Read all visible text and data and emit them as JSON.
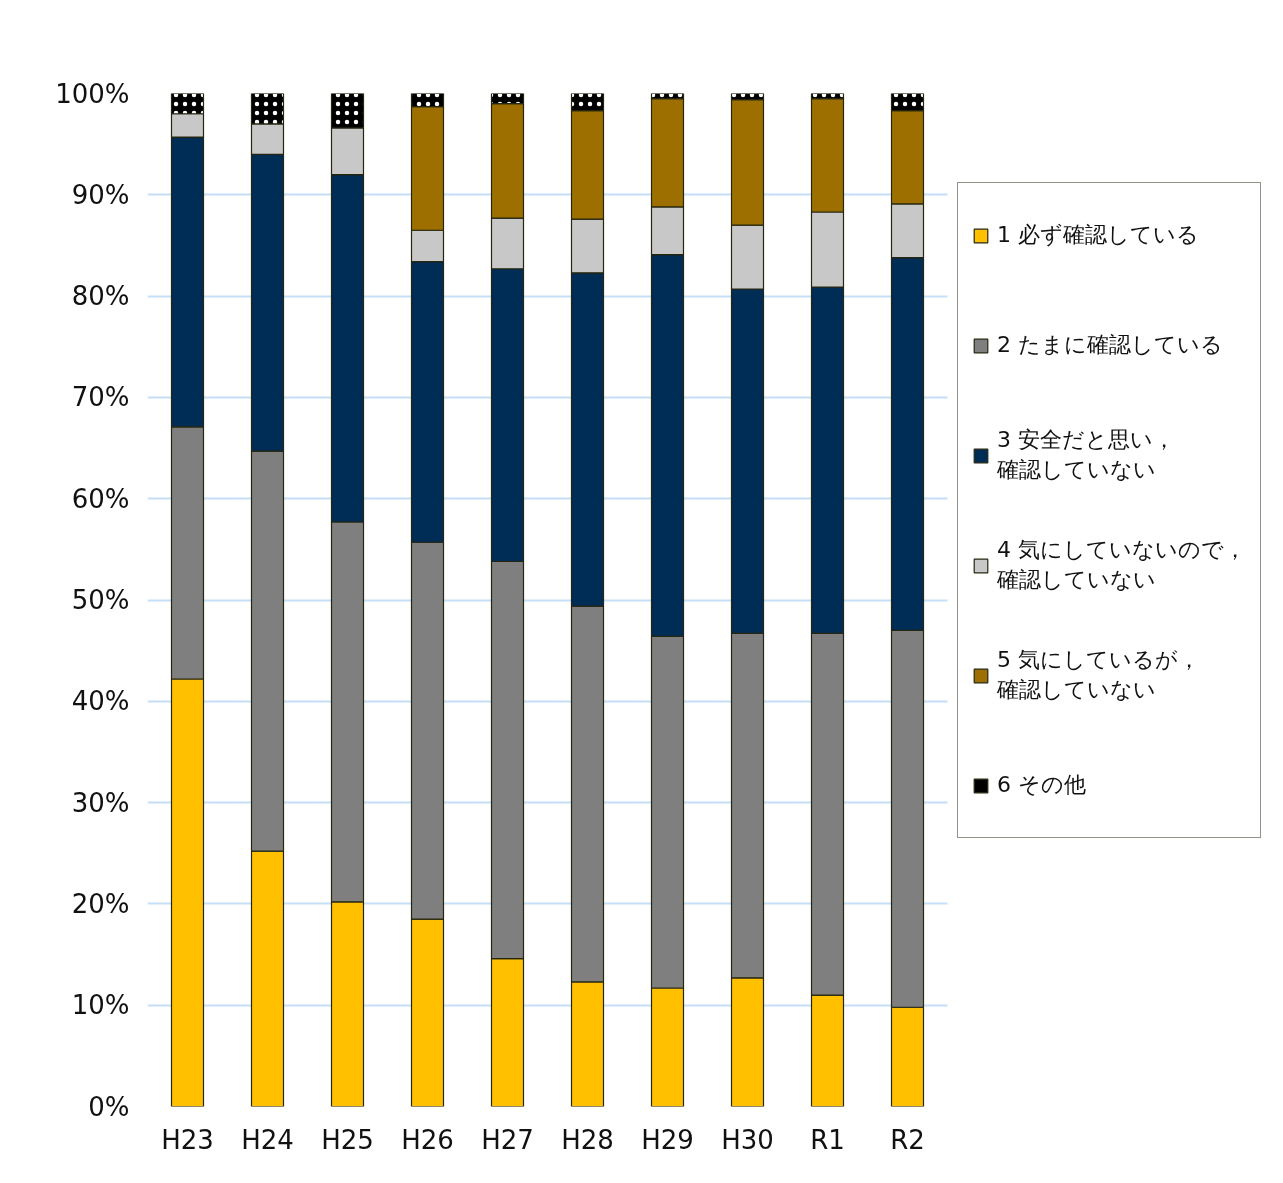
{
  "chart_data": {
    "type": "bar",
    "stacked": true,
    "categories": [
      "H23",
      "H24",
      "H25",
      "H26",
      "H27",
      "H28",
      "H29",
      "H30",
      "R1",
      "R2"
    ],
    "series": [
      {
        "name": "1 必ず確認している",
        "color": "#ffc000",
        "values": [
          42.2,
          25.2,
          20.2,
          18.5,
          14.6,
          12.3,
          11.7,
          12.7,
          11.0,
          9.8
        ]
      },
      {
        "name": "2 たまに確認している",
        "color": "#7f7f7f",
        "values": [
          24.9,
          39.5,
          37.5,
          37.2,
          39.2,
          37.1,
          34.7,
          34.0,
          35.7,
          37.2
        ]
      },
      {
        "name": "3 安全だと思い，確認していない",
        "color": "#002d56",
        "values": [
          28.6,
          29.3,
          34.3,
          27.7,
          28.9,
          32.9,
          37.7,
          34.0,
          34.2,
          36.8
        ]
      },
      {
        "name": "4 気にしていないので，確認していない",
        "color": "#c8c8c8",
        "values": [
          2.3,
          3.0,
          4.6,
          3.1,
          5.0,
          5.3,
          4.7,
          6.3,
          7.4,
          5.3
        ]
      },
      {
        "name": "5 気にしているが，確認していない",
        "color": "#9c6f00",
        "values": [
          null,
          null,
          null,
          12.2,
          11.3,
          10.7,
          10.7,
          12.4,
          11.2,
          9.2
        ]
      },
      {
        "name": "6 その他",
        "color": "#000000",
        "values": [
          2.0,
          3.0,
          3.4,
          1.3,
          1.0,
          1.7,
          0.5,
          0.6,
          0.5,
          1.7
        ]
      }
    ],
    "ylim": [
      0,
      100
    ],
    "yticks": [
      {
        "value": 0,
        "label": "0%"
      },
      {
        "value": 10,
        "label": "10%"
      },
      {
        "value": 20,
        "label": "20%"
      },
      {
        "value": 30,
        "label": "30%"
      },
      {
        "value": 40,
        "label": "40%"
      },
      {
        "value": 50,
        "label": "50%"
      },
      {
        "value": 60,
        "label": "60%"
      },
      {
        "value": 70,
        "label": "70%"
      },
      {
        "value": 80,
        "label": "80%"
      },
      {
        "value": 90,
        "label": "90%"
      },
      {
        "value": 100,
        "label": "100%"
      }
    ],
    "grid": "y",
    "legend": "right"
  }
}
